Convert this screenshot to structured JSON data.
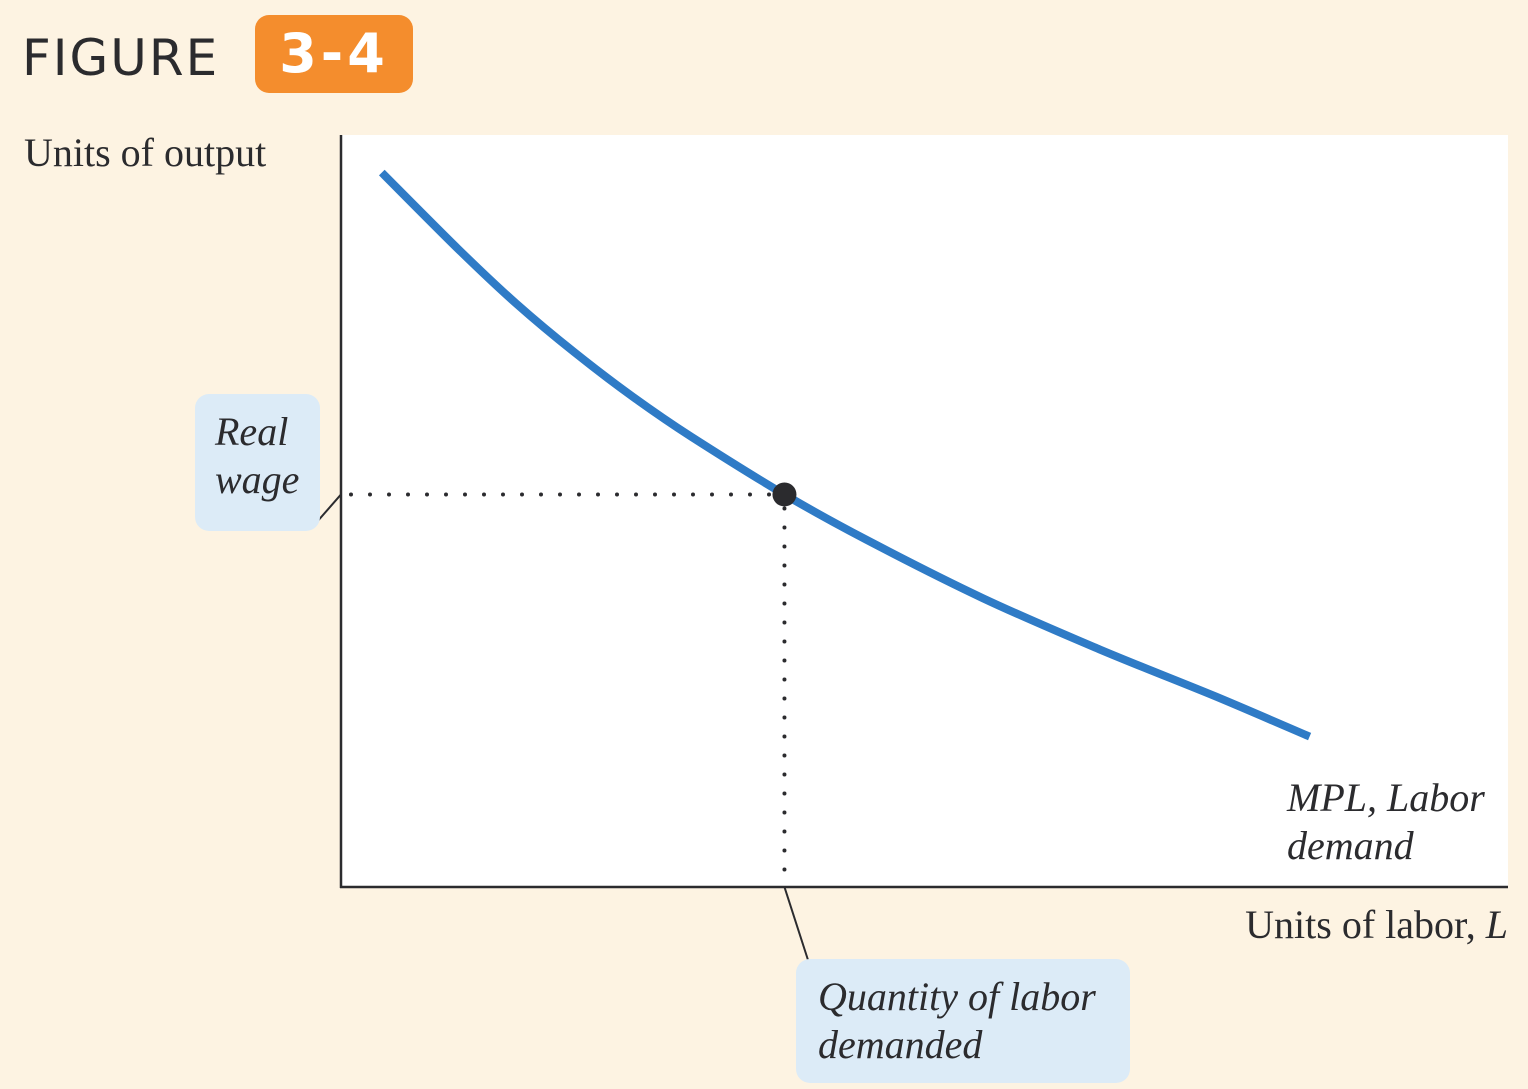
{
  "figure": {
    "word": "FIGURE",
    "number": "3-4"
  },
  "colors": {
    "background": "#fdf3e2",
    "badge": "#f48d2d",
    "curve": "#2f7bc6",
    "callout": "#dcebf7",
    "text": "#2b2b2e"
  },
  "chart_data": {
    "type": "line",
    "title": "",
    "ylabel": "Units of output",
    "xlabel": "Units of labor, ",
    "xlabel_variable": "L",
    "xlim": [
      0,
      10
    ],
    "ylim": [
      0,
      10
    ],
    "grid": false,
    "series": [
      {
        "name": "MPL, Labor demand",
        "label_lines": [
          "MPL, Labor",
          "demand"
        ],
        "x": [
          0.35,
          1.0,
          1.5,
          2.0,
          2.5,
          3.0,
          3.8,
          4.5,
          5.5,
          6.5,
          7.5,
          8.3
        ],
        "y": [
          9.5,
          8.49,
          7.76,
          7.11,
          6.52,
          5.99,
          5.22,
          4.62,
          3.84,
          3.16,
          2.53,
          2.0
        ]
      }
    ],
    "equilibrium_point": {
      "x": 3.8,
      "y": 5.22
    },
    "annotations": {
      "real_wage": [
        "Real",
        "wage"
      ],
      "quantity_of_labor_demanded": [
        "Quantity of labor",
        "demanded"
      ]
    }
  }
}
